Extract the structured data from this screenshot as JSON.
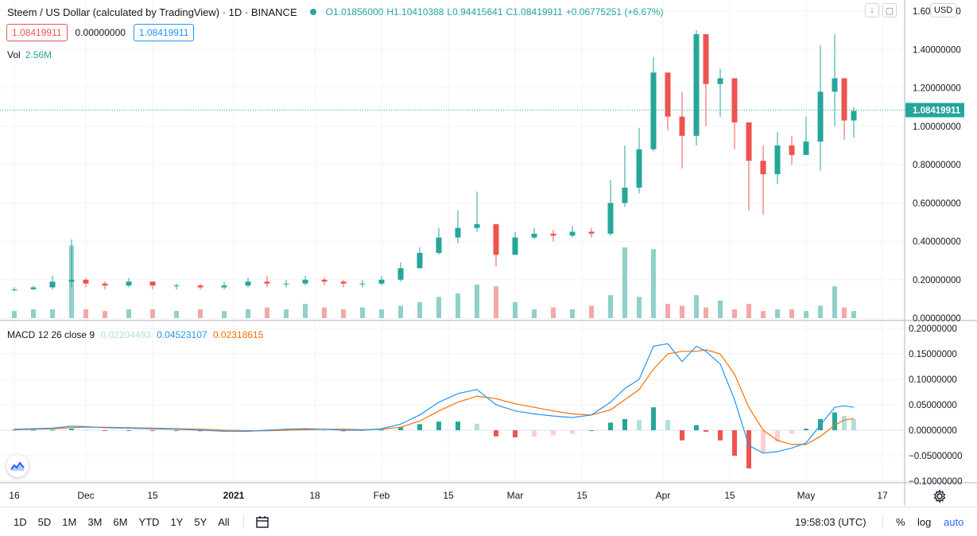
{
  "header": {
    "title": "Steem / US Dollar (calculated by TradingView) · 1D · BINANCE",
    "ohlc": {
      "open": "O1.01856000",
      "high": "H1.10410388",
      "low": "L0.94415641",
      "close": "C1.08419911",
      "change": "+0.06775251 (+6.67%)"
    },
    "buttons": {
      "download": "↓",
      "restore": "▢",
      "currency": "USD"
    }
  },
  "price_boxes": {
    "bid": "1.08419911",
    "spread": "0.00000000",
    "ask": "1.08419911"
  },
  "volume": {
    "label": "Vol",
    "value": "2.56M"
  },
  "macd": {
    "label": "MACD 12 26 close 9",
    "histogram": "0.02204493",
    "macd": "0.04523107",
    "signal": "0.02318615"
  },
  "colors": {
    "up": "#26a69a",
    "down": "#ef5350",
    "vol_up": "#90d0c8",
    "vol_down": "#f4a8a6",
    "macd_line": "#2196f3",
    "signal_line": "#ff6d00",
    "hist_up_strong": "#26a69a",
    "hist_up_weak": "#b2dfdb",
    "hist_down_strong": "#ef5350",
    "hist_down_weak": "#ffcdd2"
  },
  "chart_data": {
    "type": "candlestick",
    "price_axis": {
      "ticks": [
        "1.60000000",
        "1.40000000",
        "1.20000000",
        "1.00000000",
        "0.80000000",
        "0.60000000",
        "0.40000000",
        "0.20000000",
        "0.00000000"
      ],
      "last_price_label": "1.08419911",
      "last_price": 1.08419911
    },
    "macd_axis": {
      "ticks": [
        "0.20000000",
        "0.15000000",
        "0.10000000",
        "0.05000000",
        "0.00000000",
        "−0.05000000",
        "−0.10000000"
      ]
    },
    "time_axis": {
      "ticks": [
        "16",
        "Dec",
        "15",
        "2021",
        "18",
        "Feb",
        "15",
        "Mar",
        "15",
        "Apr",
        "15",
        "May",
        "17"
      ]
    },
    "price_series": {
      "x": [
        "2020-11-16",
        "2020-11-20",
        "2020-11-24",
        "2020-11-28",
        "2020-12-01",
        "2020-12-05",
        "2020-12-10",
        "2020-12-15",
        "2020-12-20",
        "2020-12-25",
        "2020-12-30",
        "2021-01-04",
        "2021-01-08",
        "2021-01-12",
        "2021-01-16",
        "2021-01-20",
        "2021-01-24",
        "2021-01-28",
        "2021-02-01",
        "2021-02-05",
        "2021-02-09",
        "2021-02-13",
        "2021-02-17",
        "2021-02-21",
        "2021-02-25",
        "2021-03-01",
        "2021-03-05",
        "2021-03-09",
        "2021-03-13",
        "2021-03-17",
        "2021-03-21",
        "2021-03-24",
        "2021-03-27",
        "2021-03-30",
        "2021-04-02",
        "2021-04-05",
        "2021-04-08",
        "2021-04-10",
        "2021-04-13",
        "2021-04-16",
        "2021-04-19",
        "2021-04-22",
        "2021-04-25",
        "2021-04-28",
        "2021-05-01",
        "2021-05-04",
        "2021-05-07",
        "2021-05-09",
        "2021-05-11"
      ],
      "close": [
        0.15,
        0.16,
        0.19,
        0.2,
        0.18,
        0.17,
        0.19,
        0.17,
        0.17,
        0.16,
        0.17,
        0.19,
        0.18,
        0.18,
        0.2,
        0.19,
        0.18,
        0.18,
        0.2,
        0.26,
        0.34,
        0.42,
        0.47,
        0.49,
        0.33,
        0.42,
        0.44,
        0.43,
        0.45,
        0.44,
        0.6,
        0.68,
        0.88,
        1.28,
        1.05,
        0.95,
        1.48,
        1.22,
        1.25,
        1.02,
        0.82,
        0.75,
        0.9,
        0.85,
        0.92,
        1.18,
        1.25,
        1.03,
        1.08
      ],
      "high": [
        0.16,
        0.17,
        0.22,
        0.41,
        0.21,
        0.19,
        0.21,
        0.19,
        0.18,
        0.18,
        0.19,
        0.21,
        0.22,
        0.2,
        0.22,
        0.21,
        0.2,
        0.2,
        0.22,
        0.29,
        0.37,
        0.47,
        0.56,
        0.66,
        0.46,
        0.45,
        0.47,
        0.46,
        0.48,
        0.47,
        0.72,
        0.9,
        0.99,
        1.36,
        1.27,
        1.18,
        1.5,
        1.43,
        1.3,
        1.22,
        1.02,
        0.9,
        0.97,
        0.95,
        1.05,
        1.42,
        1.48,
        1.22,
        1.1
      ],
      "low": [
        0.14,
        0.15,
        0.15,
        0.16,
        0.16,
        0.15,
        0.16,
        0.15,
        0.15,
        0.15,
        0.15,
        0.16,
        0.16,
        0.16,
        0.17,
        0.17,
        0.16,
        0.16,
        0.17,
        0.19,
        0.26,
        0.33,
        0.39,
        0.45,
        0.27,
        0.35,
        0.41,
        0.4,
        0.42,
        0.42,
        0.43,
        0.58,
        0.65,
        0.87,
        0.98,
        0.78,
        0.9,
        1.0,
        1.05,
        0.88,
        0.56,
        0.54,
        0.7,
        0.8,
        0.85,
        0.77,
        1.0,
        0.93,
        0.94
      ]
    },
    "macd_series": {
      "macd": [
        0.002,
        0.003,
        0.004,
        0.008,
        0.007,
        0.005,
        0.004,
        0.003,
        0.002,
        0.0,
        -0.002,
        -0.002,
        0.0,
        0.002,
        0.003,
        0.002,
        0.0,
        0.0,
        0.003,
        0.012,
        0.03,
        0.055,
        0.072,
        0.08,
        0.05,
        0.038,
        0.032,
        0.028,
        0.025,
        0.03,
        0.055,
        0.082,
        0.1,
        0.165,
        0.17,
        0.135,
        0.165,
        0.155,
        0.13,
        0.06,
        -0.03,
        -0.045,
        -0.042,
        -0.035,
        -0.025,
        0.01,
        0.045,
        0.048,
        0.045
      ],
      "signal": [
        0.001,
        0.002,
        0.003,
        0.005,
        0.006,
        0.006,
        0.005,
        0.004,
        0.003,
        0.002,
        0.0,
        -0.001,
        -0.001,
        0.0,
        0.001,
        0.002,
        0.002,
        0.001,
        0.002,
        0.006,
        0.018,
        0.038,
        0.055,
        0.067,
        0.062,
        0.052,
        0.045,
        0.038,
        0.032,
        0.03,
        0.04,
        0.06,
        0.08,
        0.12,
        0.15,
        0.155,
        0.155,
        0.158,
        0.15,
        0.11,
        0.045,
        0.0,
        -0.02,
        -0.028,
        -0.028,
        -0.012,
        0.01,
        0.02,
        0.023
      ],
      "histogram": [
        0.001,
        0.001,
        0.001,
        0.003,
        0.001,
        -0.001,
        -0.001,
        -0.001,
        -0.001,
        -0.002,
        -0.002,
        -0.001,
        0.001,
        0.002,
        0.002,
        0.0,
        -0.002,
        -0.001,
        0.001,
        0.006,
        0.012,
        0.017,
        0.017,
        0.013,
        -0.012,
        -0.014,
        -0.013,
        -0.01,
        -0.007,
        0.0,
        0.015,
        0.022,
        0.02,
        0.045,
        0.02,
        -0.02,
        0.01,
        -0.003,
        -0.02,
        -0.05,
        -0.075,
        -0.045,
        -0.022,
        -0.007,
        0.003,
        0.022,
        0.035,
        0.028,
        0.022
      ]
    },
    "volume_series": [
      0.04,
      0.05,
      0.05,
      0.41,
      0.05,
      0.04,
      0.05,
      0.05,
      0.04,
      0.05,
      0.04,
      0.05,
      0.06,
      0.05,
      0.08,
      0.06,
      0.05,
      0.06,
      0.05,
      0.07,
      0.09,
      0.12,
      0.14,
      0.19,
      0.18,
      0.09,
      0.05,
      0.06,
      0.05,
      0.07,
      0.13,
      0.4,
      0.12,
      0.39,
      0.08,
      0.07,
      0.13,
      0.06,
      0.1,
      0.05,
      0.08,
      0.04,
      0.05,
      0.05,
      0.04,
      0.07,
      0.18,
      0.06,
      0.04
    ]
  },
  "bottom_bar": {
    "ranges": [
      "1D",
      "5D",
      "1M",
      "3M",
      "6M",
      "YTD",
      "1Y",
      "5Y",
      "All"
    ],
    "clock": "19:58:03 (UTC)",
    "percent": "%",
    "log": "log",
    "auto": "auto"
  }
}
